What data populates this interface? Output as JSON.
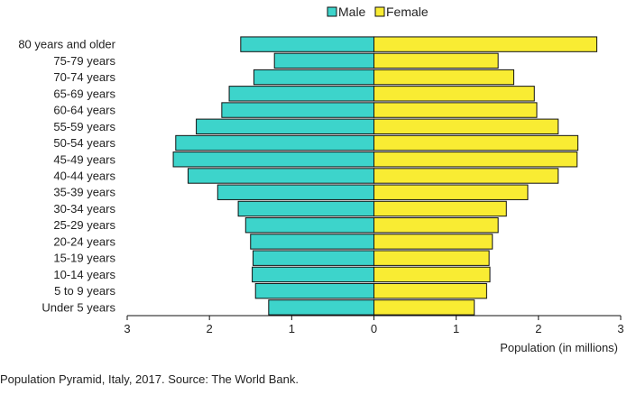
{
  "chart_data": {
    "type": "bar",
    "orientation": "horizontal-diverging",
    "categories": [
      "80 years and older",
      "75-79 years",
      "70-74 years",
      "65-69 years",
      "60-64 years",
      "55-59 years",
      "50-54 years",
      "45-49 years",
      "40-44 years",
      "35-39 years",
      "30-34 years",
      "25-29 years",
      "20-24 years",
      "15-19 years",
      "10-14 years",
      "5 to 9 years",
      "Under 5 years"
    ],
    "series": [
      {
        "name": "Male",
        "color": "#3dd4cb",
        "values": [
          1.62,
          1.21,
          1.46,
          1.76,
          1.85,
          2.16,
          2.41,
          2.44,
          2.26,
          1.9,
          1.65,
          1.56,
          1.5,
          1.47,
          1.48,
          1.44,
          1.28
        ]
      },
      {
        "name": "Female",
        "color": "#f9ec33",
        "values": [
          2.71,
          1.51,
          1.7,
          1.95,
          1.98,
          2.24,
          2.48,
          2.47,
          2.24,
          1.87,
          1.61,
          1.51,
          1.44,
          1.4,
          1.41,
          1.37,
          1.22
        ]
      }
    ],
    "xlim": [
      -3,
      3
    ],
    "xticks": [
      {
        "value": -3,
        "label": "3"
      },
      {
        "value": -2,
        "label": "2"
      },
      {
        "value": -1,
        "label": "1"
      },
      {
        "value": 0,
        "label": "0"
      },
      {
        "value": 1,
        "label": "1"
      },
      {
        "value": 2,
        "label": "2"
      },
      {
        "value": 3,
        "label": "3"
      }
    ],
    "xlabel": "Population (in millions)",
    "legend": "top-center",
    "grid": false
  },
  "caption": "Population Pyramid, Italy, 2017. Source: The World Bank."
}
